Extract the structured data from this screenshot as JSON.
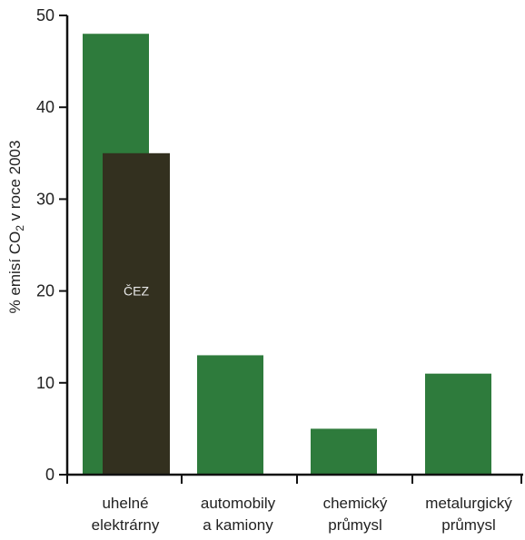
{
  "chart_data": {
    "type": "bar",
    "ylabel": "% emisí CO",
    "ylabel_subscript": "2",
    "ylabel_suffix": " v roce 2003",
    "ylim": [
      0,
      50
    ],
    "yticks": [
      0,
      10,
      20,
      30,
      40,
      50
    ],
    "categories": [
      [
        "uhelné",
        "elektrárny"
      ],
      [
        "automobily",
        "a kamiony"
      ],
      [
        "chemický",
        "průmysl"
      ],
      [
        "metalurgický",
        "průmysl"
      ]
    ],
    "series": [
      {
        "values": [
          48,
          13,
          5,
          11
        ],
        "color": "#2e7b3c"
      },
      {
        "name": "ČEZ",
        "values": [
          35,
          null,
          null,
          null
        ],
        "color": "#33301f"
      }
    ],
    "annotations": [
      {
        "category_index": 0,
        "series_index": 1,
        "text": "ČEZ",
        "y": 20
      }
    ],
    "grid": false,
    "legend": "none"
  }
}
